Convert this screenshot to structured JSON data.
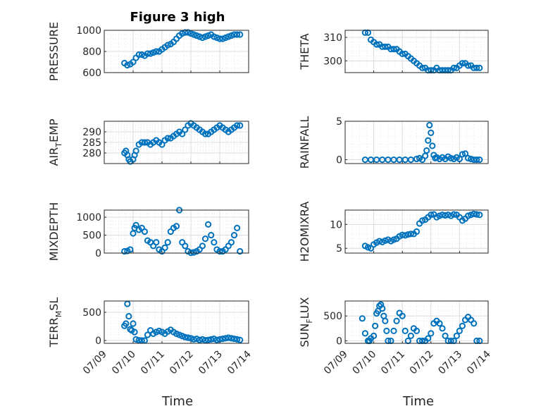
{
  "title": "Figure 3 high",
  "xlabel": "Time",
  "marker_color": "#0072BD",
  "chart_data": [
    {
      "type": "scatter",
      "name": "PRESSURE",
      "ylabel_main": "PRESSURE",
      "ylabel_sub": "",
      "ylabel_tail": "",
      "xlim": [
        0,
        5
      ],
      "ylim": [
        600,
        1000
      ],
      "yticks": [
        600,
        800,
        1000
      ],
      "xticklabels": [
        "07/09",
        "07/10",
        "07/11",
        "07/12",
        "07/13",
        "07/14"
      ],
      "x": [
        0.7,
        0.8,
        0.9,
        1.0,
        1.1,
        1.2,
        1.3,
        1.4,
        1.5,
        1.6,
        1.7,
        1.8,
        1.9,
        2.0,
        2.1,
        2.2,
        2.3,
        2.4,
        2.5,
        2.6,
        2.7,
        2.8,
        2.9,
        3.0,
        3.1,
        3.2,
        3.3,
        3.4,
        3.5,
        3.6,
        3.7,
        3.8,
        3.9,
        4.0,
        4.1,
        4.2,
        4.3,
        4.4,
        4.5,
        4.6,
        4.7
      ],
      "y": [
        690,
        670,
        680,
        700,
        740,
        770,
        770,
        760,
        780,
        780,
        790,
        800,
        800,
        820,
        840,
        860,
        870,
        890,
        920,
        950,
        970,
        980,
        980,
        970,
        960,
        950,
        940,
        930,
        940,
        950,
        960,
        940,
        930,
        920,
        920,
        930,
        940,
        950,
        960,
        960,
        960
      ]
    },
    {
      "type": "scatter",
      "name": "THETA",
      "ylabel_main": "THETA",
      "ylabel_sub": "",
      "ylabel_tail": "",
      "xlim": [
        0,
        5
      ],
      "ylim": [
        295,
        313
      ],
      "yticks": [
        300,
        310
      ],
      "xticklabels": [
        "07/09",
        "07/10",
        "07/11",
        "07/12",
        "07/13",
        "07/14"
      ],
      "x": [
        0.7,
        0.8,
        0.9,
        1.0,
        1.1,
        1.2,
        1.3,
        1.4,
        1.5,
        1.6,
        1.7,
        1.8,
        1.9,
        2.0,
        2.1,
        2.2,
        2.3,
        2.4,
        2.5,
        2.6,
        2.7,
        2.8,
        2.9,
        3.0,
        3.1,
        3.2,
        3.3,
        3.4,
        3.5,
        3.6,
        3.7,
        3.8,
        3.9,
        4.0,
        4.1,
        4.2,
        4.3,
        4.4,
        4.5,
        4.6,
        4.7
      ],
      "y": [
        312,
        312,
        309,
        308,
        307,
        307,
        306,
        306,
        306,
        305,
        305,
        305,
        304,
        303,
        303,
        302,
        301,
        300,
        299,
        298,
        297,
        297,
        296,
        296,
        296,
        297,
        296,
        296,
        296,
        296,
        296,
        297,
        297,
        298,
        299,
        299,
        298,
        298,
        297,
        297,
        297
      ]
    },
    {
      "type": "scatter",
      "name": "AIR_TEMP",
      "ylabel_main": "AIR",
      "ylabel_sub": "T",
      "ylabel_tail": "EMP",
      "xlim": [
        0,
        5
      ],
      "ylim": [
        275,
        295
      ],
      "yticks": [
        280,
        285,
        290
      ],
      "xticklabels": [
        "07/09",
        "07/10",
        "07/11",
        "07/12",
        "07/13",
        "07/14"
      ],
      "x": [
        0.7,
        0.75,
        0.8,
        0.85,
        0.9,
        1.0,
        1.05,
        1.1,
        1.2,
        1.3,
        1.4,
        1.5,
        1.6,
        1.7,
        1.8,
        1.9,
        2.0,
        2.1,
        2.2,
        2.3,
        2.4,
        2.5,
        2.6,
        2.7,
        2.8,
        2.9,
        3.0,
        3.1,
        3.2,
        3.3,
        3.4,
        3.5,
        3.6,
        3.7,
        3.8,
        3.9,
        4.0,
        4.1,
        4.2,
        4.3,
        4.4,
        4.5,
        4.6,
        4.7
      ],
      "y": [
        280,
        281,
        279,
        277,
        276,
        277,
        279,
        281,
        284,
        285,
        285,
        285,
        284,
        285,
        286,
        285,
        284,
        286,
        287,
        287,
        288,
        289,
        290,
        289,
        291,
        293,
        294,
        293,
        292,
        291,
        290,
        289,
        289,
        290,
        291,
        292,
        293,
        292,
        291,
        290,
        291,
        292,
        293,
        293
      ]
    },
    {
      "type": "scatter",
      "name": "RAINFALL",
      "ylabel_main": "RAINFALL",
      "ylabel_sub": "",
      "ylabel_tail": "",
      "xlim": [
        0,
        5
      ],
      "ylim": [
        -0.5,
        5
      ],
      "yticks": [
        0,
        5
      ],
      "xticklabels": [
        "07/09",
        "07/10",
        "07/11",
        "07/12",
        "07/13",
        "07/14"
      ],
      "x": [
        0.7,
        0.9,
        1.1,
        1.3,
        1.5,
        1.7,
        1.9,
        2.1,
        2.3,
        2.5,
        2.6,
        2.7,
        2.8,
        2.85,
        2.9,
        2.95,
        3.0,
        3.05,
        3.1,
        3.15,
        3.2,
        3.3,
        3.4,
        3.5,
        3.6,
        3.7,
        3.8,
        3.9,
        4.0,
        4.1,
        4.2,
        4.3,
        4.4,
        4.5,
        4.6,
        4.7
      ],
      "y": [
        0,
        0,
        0,
        0,
        0,
        0,
        0,
        0,
        0,
        0.1,
        0.2,
        0,
        0.5,
        1.2,
        2.5,
        4.5,
        3.5,
        1.8,
        0.6,
        0.2,
        0.3,
        0.1,
        0.3,
        0.1,
        0.4,
        0.2,
        0.1,
        0.3,
        0.1,
        0.7,
        0.8,
        0.2,
        0.1,
        0,
        0,
        0
      ]
    },
    {
      "type": "scatter",
      "name": "MIXDEPTH",
      "ylabel_main": "MIXDEPTH",
      "ylabel_sub": "",
      "ylabel_tail": "",
      "xlim": [
        0,
        5
      ],
      "ylim": [
        0,
        1200
      ],
      "yticks": [
        0,
        500,
        1000
      ],
      "xticklabels": [
        "07/09",
        "07/10",
        "07/11",
        "07/12",
        "07/13",
        "07/14"
      ],
      "x": [
        0.7,
        0.8,
        0.9,
        1.0,
        1.05,
        1.1,
        1.2,
        1.3,
        1.4,
        1.5,
        1.6,
        1.7,
        1.8,
        1.9,
        2.0,
        2.1,
        2.2,
        2.3,
        2.4,
        2.5,
        2.6,
        2.7,
        2.8,
        2.9,
        3.0,
        3.1,
        3.2,
        3.3,
        3.4,
        3.5,
        3.6,
        3.7,
        3.8,
        3.9,
        4.0,
        4.1,
        4.2,
        4.3,
        4.4,
        4.5,
        4.6,
        4.7
      ],
      "y": [
        50,
        60,
        100,
        550,
        700,
        780,
        650,
        700,
        600,
        350,
        300,
        200,
        300,
        100,
        50,
        150,
        300,
        600,
        700,
        750,
        1200,
        300,
        200,
        50,
        10,
        20,
        50,
        100,
        200,
        400,
        800,
        500,
        300,
        100,
        50,
        50,
        100,
        200,
        300,
        500,
        700,
        50
      ]
    },
    {
      "type": "scatter",
      "name": "H2OMIXRA",
      "ylabel_main": "H2OMIXRA",
      "ylabel_sub": "",
      "ylabel_tail": "",
      "xlim": [
        0,
        5
      ],
      "ylim": [
        4,
        13
      ],
      "yticks": [
        5,
        10
      ],
      "xticklabels": [
        "07/09",
        "07/10",
        "07/11",
        "07/12",
        "07/13",
        "07/14"
      ],
      "x": [
        0.7,
        0.8,
        0.9,
        1.0,
        1.1,
        1.2,
        1.3,
        1.4,
        1.5,
        1.6,
        1.7,
        1.8,
        1.9,
        2.0,
        2.1,
        2.2,
        2.3,
        2.4,
        2.5,
        2.6,
        2.7,
        2.8,
        2.9,
        3.0,
        3.1,
        3.2,
        3.3,
        3.4,
        3.5,
        3.6,
        3.7,
        3.8,
        3.9,
        4.0,
        4.1,
        4.2,
        4.3,
        4.4,
        4.5,
        4.6,
        4.7
      ],
      "y": [
        5.5,
        5.2,
        5.0,
        5.8,
        6.2,
        6.5,
        6.3,
        6.6,
        6.8,
        6.5,
        6.8,
        7.0,
        7.5,
        7.8,
        7.7,
        7.9,
        8.0,
        8.0,
        8.5,
        10.2,
        10.8,
        11.0,
        11.5,
        12.0,
        12.1,
        11.5,
        11.8,
        12.0,
        11.9,
        12.0,
        11.8,
        12.1,
        12.0,
        11.5,
        10.8,
        11.2,
        11.8,
        12.0,
        12.2,
        12.1,
        12.0
      ]
    },
    {
      "type": "scatter",
      "name": "TERR_MSL",
      "ylabel_main": "TERR",
      "ylabel_sub": "M",
      "ylabel_tail": "SL",
      "xlim": [
        0,
        5
      ],
      "ylim": [
        -50,
        700
      ],
      "yticks": [
        0,
        500
      ],
      "xticklabels": [
        "07/09",
        "07/10",
        "07/11",
        "07/12",
        "07/13",
        "07/14"
      ],
      "x": [
        0.7,
        0.75,
        0.8,
        0.85,
        0.9,
        0.95,
        1.0,
        1.05,
        1.1,
        1.2,
        1.3,
        1.4,
        1.5,
        1.6,
        1.7,
        1.8,
        1.9,
        2.0,
        2.1,
        2.2,
        2.3,
        2.4,
        2.5,
        2.6,
        2.7,
        2.8,
        2.9,
        3.0,
        3.1,
        3.2,
        3.3,
        3.4,
        3.5,
        3.6,
        3.7,
        3.8,
        3.9,
        4.0,
        4.1,
        4.2,
        4.3,
        4.4,
        4.5,
        4.6,
        4.7
      ],
      "y": [
        260,
        300,
        650,
        430,
        200,
        180,
        300,
        150,
        20,
        5,
        0,
        0,
        100,
        180,
        120,
        150,
        170,
        150,
        120,
        160,
        190,
        150,
        120,
        100,
        80,
        60,
        50,
        40,
        20,
        30,
        10,
        20,
        5,
        10,
        20,
        30,
        10,
        20,
        30,
        40,
        50,
        40,
        30,
        20,
        10
      ]
    },
    {
      "type": "scatter",
      "name": "SUN_FLUX",
      "ylabel_main": "SUN",
      "ylabel_sub": "F",
      "ylabel_tail": "LUX",
      "xlim": [
        0,
        5
      ],
      "ylim": [
        -50,
        800
      ],
      "yticks": [
        0,
        500
      ],
      "xticklabels": [
        "07/09",
        "07/10",
        "07/11",
        "07/12",
        "07/13",
        "07/14"
      ],
      "x": [
        0.6,
        0.7,
        0.8,
        0.85,
        0.9,
        1.0,
        1.05,
        1.1,
        1.15,
        1.2,
        1.25,
        1.3,
        1.35,
        1.4,
        1.45,
        1.5,
        1.6,
        1.7,
        1.8,
        1.9,
        2.0,
        2.1,
        2.2,
        2.3,
        2.4,
        2.5,
        2.6,
        2.7,
        2.8,
        2.9,
        3.0,
        3.1,
        3.2,
        3.3,
        3.4,
        3.5,
        3.6,
        3.7,
        3.8,
        3.9,
        4.0,
        4.1,
        4.2,
        4.3,
        4.4,
        4.5,
        4.6,
        4.7
      ],
      "y": [
        450,
        150,
        0,
        0,
        50,
        100,
        300,
        550,
        600,
        700,
        730,
        650,
        500,
        400,
        200,
        0,
        0,
        200,
        400,
        560,
        500,
        200,
        0,
        100,
        250,
        200,
        0,
        0,
        0,
        50,
        150,
        350,
        400,
        350,
        250,
        100,
        0,
        0,
        0,
        100,
        200,
        300,
        420,
        480,
        420,
        350,
        0,
        0
      ]
    }
  ]
}
